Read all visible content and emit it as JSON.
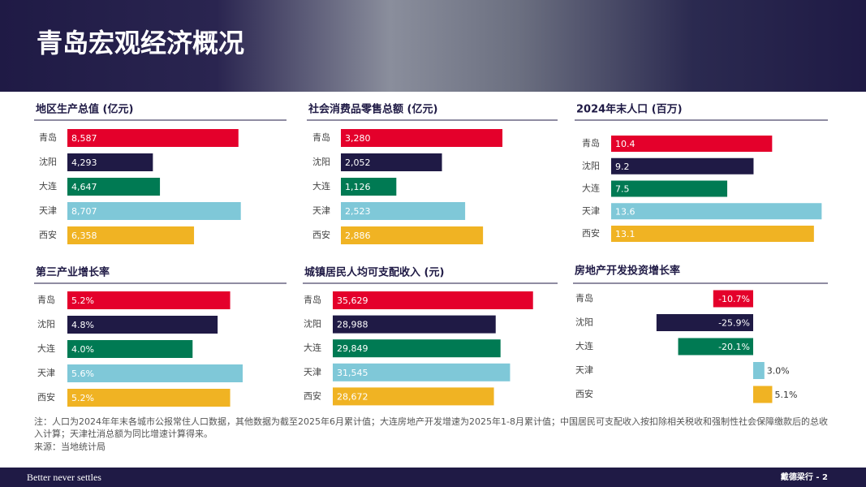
{
  "header": {
    "title": "青岛宏观经济概况"
  },
  "chart_data": [
    {
      "type": "hbar",
      "title": "地区生产总值 (亿元)",
      "categories": [
        "青岛",
        "沈阳",
        "大连",
        "天津",
        "西安"
      ],
      "values": [
        8587,
        4293,
        4647,
        8707,
        6358
      ],
      "value_labels": [
        "8,587",
        "4,293",
        "4,647",
        "8,707",
        "6,358"
      ],
      "colors": [
        "#e4002b",
        "#1f1a45",
        "#007a53",
        "#7fc8d8",
        "#f0b323"
      ],
      "xlim": [
        0,
        11000
      ]
    },
    {
      "type": "hbar",
      "title": "社会消费品零售总额 (亿元)",
      "categories": [
        "青岛",
        "沈阳",
        "大连",
        "天津",
        "西安"
      ],
      "values": [
        3280,
        2052,
        1126,
        2523,
        2886
      ],
      "value_labels": [
        "3,280",
        "2,052",
        "1,126",
        "2,523",
        "2,886"
      ],
      "colors": [
        "#e4002b",
        "#1f1a45",
        "#007a53",
        "#7fc8d8",
        "#f0b323"
      ],
      "xlim": [
        0,
        4400
      ]
    },
    {
      "type": "hbar",
      "title": "2024年末人口 (百万)",
      "categories": [
        "青岛",
        "沈阳",
        "大连",
        "天津",
        "西安"
      ],
      "values": [
        10.4,
        9.2,
        7.5,
        13.6,
        13.1
      ],
      "colors": [
        "#e4002b",
        "#1f1a45",
        "#007a53",
        "#7fc8d8",
        "#f0b323"
      ],
      "xlim": [
        0,
        14
      ]
    },
    {
      "type": "hbar",
      "title": "第三产业增长率",
      "categories": [
        "青岛",
        "沈阳",
        "大连",
        "天津",
        "西安"
      ],
      "values": [
        5.2,
        4.8,
        4.0,
        5.6,
        5.2
      ],
      "value_labels": [
        "5.2%",
        "4.8%",
        "4.0%",
        "5.6%",
        "5.2%"
      ],
      "colors": [
        "#e4002b",
        "#1f1a45",
        "#007a53",
        "#7fc8d8",
        "#f0b323"
      ],
      "xlim": [
        0,
        7
      ]
    },
    {
      "type": "hbar",
      "title": "城镇居民人均可支配收入 (元)",
      "categories": [
        "青岛",
        "沈阳",
        "大连",
        "天津",
        "西安"
      ],
      "values": [
        35629,
        28988,
        29849,
        31545,
        28672
      ],
      "value_labels": [
        "35,629",
        "28,988",
        "29,849",
        "31,545",
        "28,672"
      ],
      "colors": [
        "#e4002b",
        "#1f1a45",
        "#007a53",
        "#7fc8d8",
        "#f0b323"
      ],
      "xlim": [
        0,
        40000
      ]
    },
    {
      "type": "hbar",
      "title": "房地产开发投资增长率",
      "categories": [
        "青岛",
        "沈阳",
        "大连",
        "天津",
        "西安"
      ],
      "values": [
        -10.7,
        -25.9,
        -20.1,
        3.0,
        5.1
      ],
      "value_labels": [
        "-10.7%",
        "-25.9%",
        "-20.1%",
        "3.0%",
        "5.1%"
      ],
      "colors": [
        "#e4002b",
        "#1f1a45",
        "#007a53",
        "#7fc8d8",
        "#f0b323"
      ],
      "xlim": [
        -35,
        20
      ]
    }
  ],
  "notes": [
    "注：人口为2024年年末各城市公报常住人口数据，其他数据为截至2025年6月累计值；大连房地产开发增速为2025年1-8月累计值；中国居民可支配收入按扣除相关税收和强制性社会保障缴款后的总收",
    "入计算；天津社消总额为同比增速计算得来。",
    "来源：当地统计局"
  ],
  "footer": {
    "slogan": "Better never settles",
    "page": "戴德梁行 - 2"
  }
}
